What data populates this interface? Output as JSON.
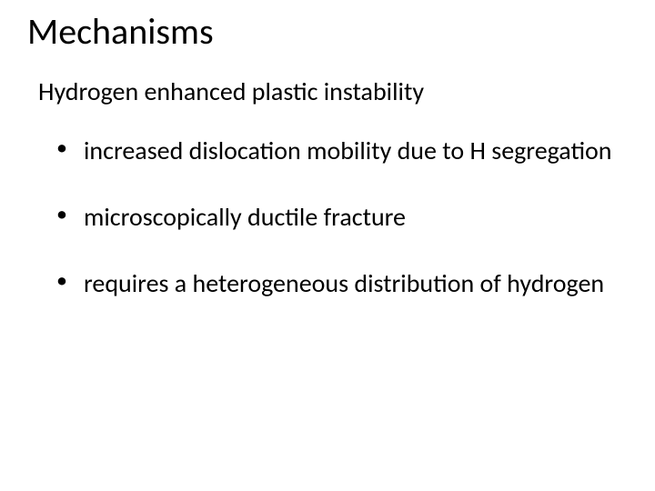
{
  "slide": {
    "title": "Mechanisms",
    "subtitle": "Hydrogen enhanced plastic instability",
    "bullets": [
      "increased dislocation mobility due to H segregation",
      "microscopically ductile fracture",
      "requires a heterogeneous distribution of hydrogen"
    ]
  },
  "style": {
    "background_color": "#ffffff",
    "text_color": "#000000",
    "title_fontsize": 40,
    "subtitle_fontsize": 28,
    "bullet_fontsize": 28,
    "font_family": "Calibri"
  }
}
